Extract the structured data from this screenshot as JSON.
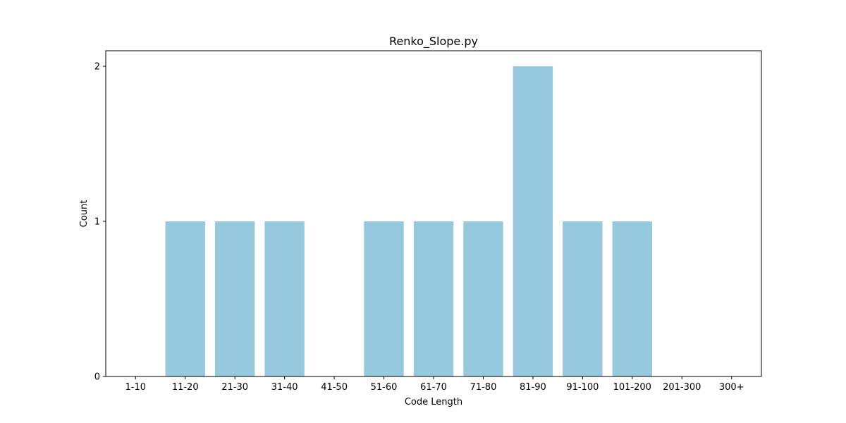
{
  "chart_data": {
    "type": "bar",
    "title": "Renko_Slope.py",
    "xlabel": "Code Length",
    "ylabel": "Count",
    "categories": [
      "1-10",
      "11-20",
      "21-30",
      "31-40",
      "41-50",
      "51-60",
      "61-70",
      "71-80",
      "81-90",
      "91-100",
      "101-200",
      "201-300",
      "300+"
    ],
    "values": [
      0,
      1,
      1,
      1,
      0,
      1,
      1,
      1,
      2,
      1,
      1,
      0,
      0
    ],
    "yticks": [
      0,
      1,
      2
    ],
    "ylim": [
      0,
      2.1
    ],
    "grid": false,
    "bar_color": "#96c9dd"
  }
}
